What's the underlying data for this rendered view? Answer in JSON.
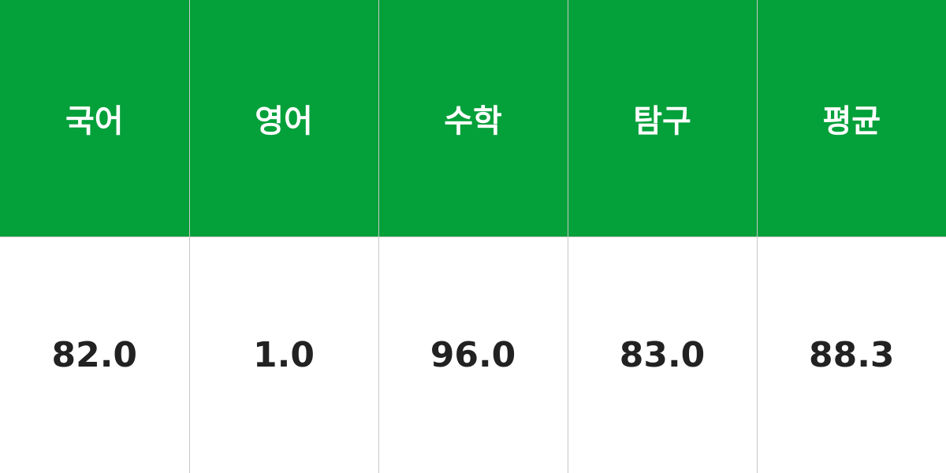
{
  "colors": {
    "header_bg": "#04a03a",
    "header_text": "#ffffff",
    "value_text": "#222222",
    "border": "#c8c8c8"
  },
  "headers": [
    "국어",
    "영어",
    "수학",
    "탐구",
    "평균"
  ],
  "values": [
    "82.0",
    "1.0",
    "96.0",
    "83.0",
    "88.3"
  ]
}
